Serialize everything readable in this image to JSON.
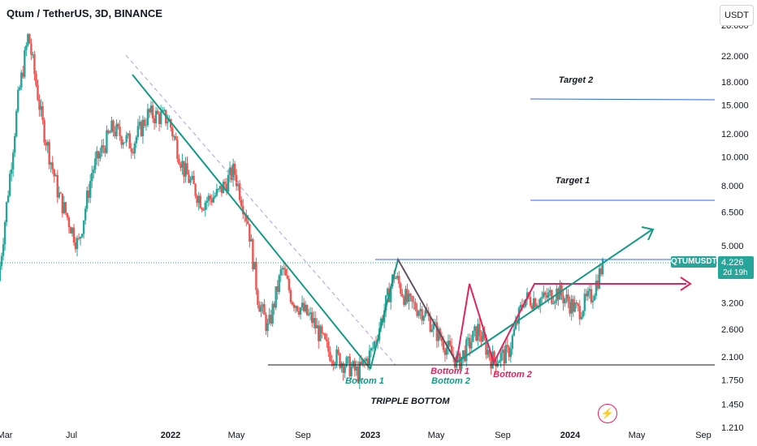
{
  "header": {
    "title": "Qtum / TetherUS, 3D, BINANCE",
    "currency_button": "USDT"
  },
  "price_badge": {
    "symbol": "QTUMUSDT",
    "price": "4.226",
    "countdown": "2d 19h"
  },
  "colors": {
    "up": "#26a69a",
    "down": "#ef5350",
    "trend_green": "#139a86",
    "pattern_red": "#e0245e",
    "target_blue": "#2962ff"
  },
  "chart_data": {
    "type": "line",
    "title": "Qtum / TetherUS, 3D, BINANCE",
    "y_scale": "log",
    "y_ticks": [
      28.0,
      22.0,
      18.0,
      15.0,
      12.0,
      10.0,
      8.0,
      6.5,
      5.0,
      4.226,
      3.2,
      2.6,
      2.1,
      1.75,
      1.45,
      1.21
    ],
    "y_tick_labels": [
      "28.000",
      "22.000",
      "18.000",
      "15.000",
      "12.000",
      "10.000",
      "8.000",
      "6.500",
      "5.000",
      "4.226",
      "3.200",
      "2.600",
      "2.100",
      "1.750",
      "1.450",
      "1.210"
    ],
    "x_tick_labels": [
      "Mar",
      "Jul",
      "2022",
      "May",
      "Sep",
      "2023",
      "May",
      "Sep",
      "2024",
      "May",
      "Sep"
    ],
    "series": [
      {
        "values": [
          [
            2021.15,
            3.8
          ],
          [
            2021.25,
            16.0
          ],
          [
            2021.3,
            26.0
          ],
          [
            2021.37,
            13.0
          ],
          [
            2021.45,
            7.5
          ],
          [
            2021.55,
            5.0
          ],
          [
            2021.62,
            9.0
          ],
          [
            2021.72,
            12.5
          ],
          [
            2021.82,
            11.0
          ],
          [
            2021.9,
            14.0
          ],
          [
            2022.0,
            13.5
          ],
          [
            2022.08,
            9.0
          ],
          [
            2022.17,
            7.0
          ],
          [
            2022.25,
            7.5
          ],
          [
            2022.33,
            9.0
          ],
          [
            2022.4,
            6.0
          ],
          [
            2022.45,
            3.3
          ],
          [
            2022.5,
            2.6
          ],
          [
            2022.57,
            4.2
          ],
          [
            2022.62,
            3.3
          ],
          [
            2022.72,
            2.8
          ],
          [
            2022.8,
            2.2
          ],
          [
            2022.88,
            2.0
          ],
          [
            2022.95,
            1.85
          ],
          [
            2023.02,
            2.2
          ],
          [
            2023.08,
            3.0
          ],
          [
            2023.13,
            4.0
          ],
          [
            2023.2,
            3.2
          ],
          [
            2023.28,
            3.0
          ],
          [
            2023.35,
            2.5
          ],
          [
            2023.45,
            2.0
          ],
          [
            2023.55,
            2.6
          ],
          [
            2023.62,
            2.05
          ],
          [
            2023.7,
            2.15
          ],
          [
            2023.78,
            3.3
          ],
          [
            2023.88,
            3.3
          ],
          [
            2023.95,
            3.5
          ],
          [
            2024.05,
            3.0
          ],
          [
            2024.12,
            3.4
          ],
          [
            2024.17,
            4.226
          ]
        ]
      }
    ],
    "annotations": [
      {
        "text": "Target 2",
        "y": 15.3
      },
      {
        "text": "Target 1",
        "y": 7.0
      },
      {
        "text": "Bottom 1",
        "color": "#139a86"
      },
      {
        "text": "Bottom 1",
        "color": "#e0245e"
      },
      {
        "text": "Bottom 2",
        "color": "#139a86"
      },
      {
        "text": "Bottom 2",
        "color": "#e0245e"
      },
      {
        "text": "TRIPPLE BOTTOM"
      }
    ],
    "grid": false
  }
}
